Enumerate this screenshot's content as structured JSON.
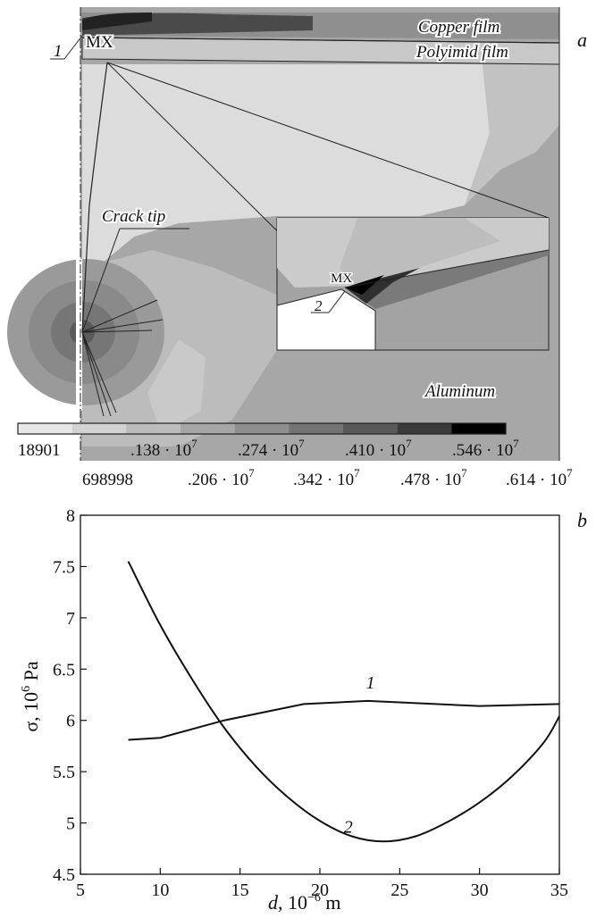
{
  "panel_a": {
    "panel_label": "a",
    "labels": {
      "copper_film": "Copper film",
      "polyimid_film": "Polyimid film",
      "crack_tip": "Crack tip",
      "aluminum": "Aluminum",
      "marker_1": "1",
      "marker_2": "2",
      "mx_main": "MX",
      "mx_inset": "MX"
    },
    "legend": {
      "top_labels": [
        {
          "mant": "18901",
          "exp": ""
        },
        {
          "mant": ".138 · 10",
          "exp": "7"
        },
        {
          "mant": ".274 · 10",
          "exp": "7"
        },
        {
          "mant": ".410 · 10",
          "exp": "7"
        },
        {
          "mant": ".546 · 10",
          "exp": "7"
        }
      ],
      "bottom_labels": [
        {
          "mant": "698998",
          "exp": ""
        },
        {
          "mant": ".206 · 10",
          "exp": "7"
        },
        {
          "mant": ".342 · 10",
          "exp": "7"
        },
        {
          "mant": ".478 · 10",
          "exp": "7"
        },
        {
          "mant": ".614 · 10",
          "exp": "7"
        }
      ],
      "colors": [
        "#e8e8e8",
        "#d2d2d2",
        "#bcbcbc",
        "#a6a6a6",
        "#8e8e8e",
        "#747474",
        "#595959",
        "#3a3a3a",
        "#000000"
      ]
    }
  },
  "chart_data": {
    "type": "line",
    "panel_label": "b",
    "xlabel": {
      "main": "d",
      "rest": ", 10",
      "exp": "−6",
      "unit": " m"
    },
    "ylabel": {
      "main": "σ, 10",
      "exp": "6",
      "unit": " Pa"
    },
    "xlim": [
      5,
      35
    ],
    "ylim": [
      4.5,
      8
    ],
    "xticks": [
      5,
      10,
      15,
      20,
      25,
      30,
      35
    ],
    "yticks": [
      4.5,
      5,
      5.5,
      6,
      6.5,
      7,
      7.5,
      8
    ],
    "xtick_labels": [
      "5",
      "10",
      "15",
      "20",
      "25",
      "30",
      "35"
    ],
    "ytick_labels": [
      "4.5",
      "5",
      "5.5",
      "6",
      "6.5",
      "7",
      "7.5",
      "8"
    ],
    "grid": false,
    "series": [
      {
        "name": "1",
        "x": [
          8,
          10,
          14,
          19,
          23,
          30,
          35
        ],
        "y": [
          5.81,
          5.83,
          6.0,
          6.16,
          6.19,
          6.14,
          6.16
        ]
      },
      {
        "name": "2",
        "x": [
          8,
          10,
          12,
          14,
          16,
          18,
          20,
          22,
          24,
          26,
          28,
          30,
          32,
          34,
          35
        ],
        "y": [
          7.55,
          6.93,
          6.4,
          5.93,
          5.55,
          5.25,
          5.02,
          4.87,
          4.82,
          4.87,
          5.01,
          5.2,
          5.45,
          5.78,
          6.04
        ]
      }
    ]
  }
}
